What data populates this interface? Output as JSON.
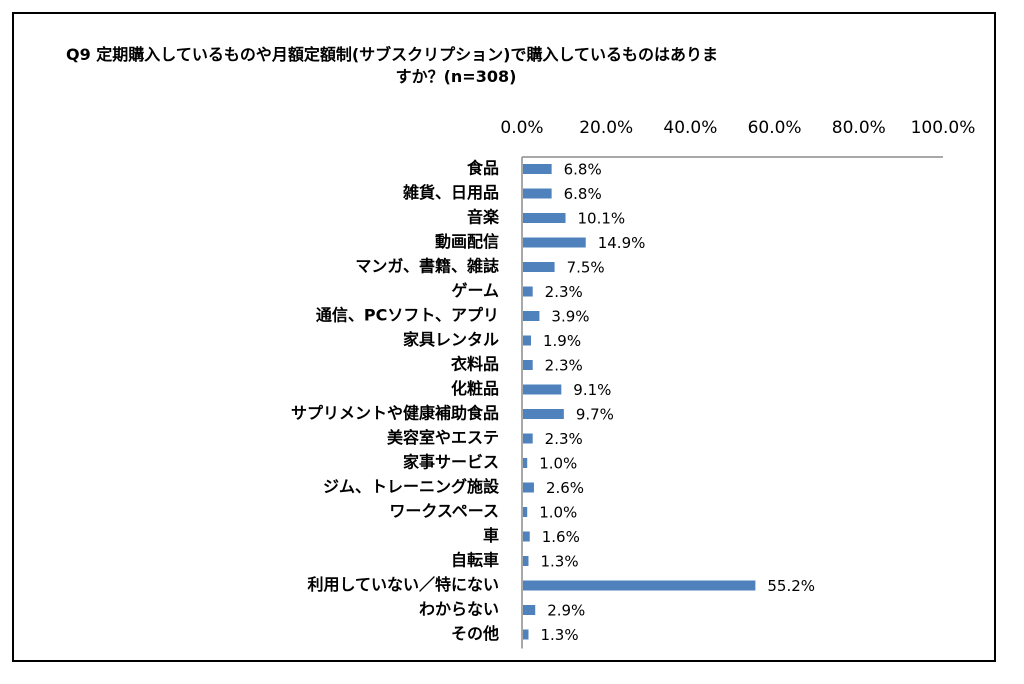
{
  "chart_data": {
    "type": "bar",
    "orientation": "horizontal",
    "title": "Q9 定期購入しているものや月額定額制(サブスクリプション)で購入しているものはありますか？(n=308)",
    "title_lines": [
      "Q9 定期購入しているものや月額定額制(サブスクリプション)で購入しているものはありま",
      "すか？(n=308)"
    ],
    "categories": [
      "食品",
      "雑貨、日用品",
      "音楽",
      "動画配信",
      "マンガ、書籍、雑誌",
      "ゲーム",
      "通信、PCソフト、アプリ",
      "家具レンタル",
      "衣料品",
      "化粧品",
      "サプリメントや健康補助食品",
      "美容室やエステ",
      "家事サービス",
      "ジム、トレーニング施設",
      "ワークスペース",
      "車",
      "自転車",
      "利用していない／特にない",
      "わからない",
      "その他"
    ],
    "values": [
      6.8,
      6.8,
      10.1,
      14.9,
      7.5,
      2.3,
      3.9,
      1.9,
      2.3,
      9.1,
      9.7,
      2.3,
      1.0,
      2.6,
      1.0,
      1.6,
      1.3,
      55.2,
      2.9,
      1.3
    ],
    "value_labels": [
      "6.8%",
      "6.8%",
      "10.1%",
      "14.9%",
      "7.5%",
      "2.3%",
      "3.9%",
      "1.9%",
      "2.3%",
      "9.1%",
      "9.7%",
      "2.3%",
      "1.0%",
      "2.6%",
      "1.0%",
      "1.6%",
      "1.3%",
      "55.2%",
      "2.9%",
      "1.3%"
    ],
    "x_ticks": [
      "0.0%",
      "20.0%",
      "40.0%",
      "60.0%",
      "80.0%",
      "100.0%"
    ],
    "xlim": [
      0,
      100
    ],
    "axis_position": "top",
    "grid": false,
    "bar_color": "#4f81bd"
  }
}
